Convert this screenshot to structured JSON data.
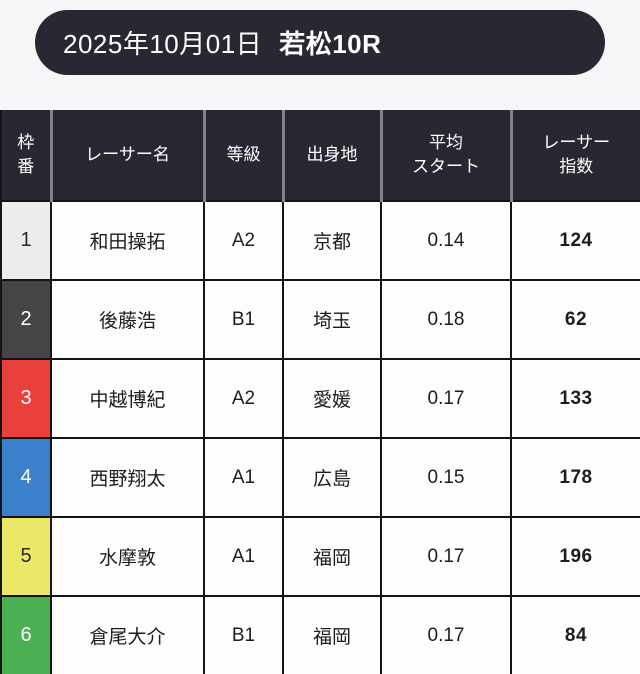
{
  "page": {
    "background_top": "#f6f6f9",
    "background_bottom": "#dedbf0"
  },
  "title_bar": {
    "date": "2025年10月01日",
    "race": "若松10R",
    "bg_color": "#2a2733",
    "text_color": "#ffffff"
  },
  "table": {
    "header_bg_color": "#2a2733",
    "header_text_color": "#ffffff",
    "columns": [
      {
        "key": "frame",
        "label": "枠\n番"
      },
      {
        "key": "name",
        "label": "レーサー名"
      },
      {
        "key": "class",
        "label": "等級"
      },
      {
        "key": "origin",
        "label": "出身地"
      },
      {
        "key": "avg_start",
        "label": "平均\nスタート"
      },
      {
        "key": "index",
        "label": "レーサー\n指数"
      }
    ],
    "rows": [
      {
        "frame": "1",
        "name": "和田操拓",
        "class": "A2",
        "origin": "京都",
        "avg_start": "0.14",
        "index": "124",
        "frame_bg": "#ececec",
        "frame_text": "#2a2a2a"
      },
      {
        "frame": "2",
        "name": "後藤浩",
        "class": "B1",
        "origin": "埼玉",
        "avg_start": "0.18",
        "index": "62",
        "frame_bg": "#454547",
        "frame_text": "#ffffff"
      },
      {
        "frame": "3",
        "name": "中越博紀",
        "class": "A2",
        "origin": "愛媛",
        "avg_start": "0.17",
        "index": "133",
        "frame_bg": "#e9403e",
        "frame_text": "#ffffff"
      },
      {
        "frame": "4",
        "name": "西野翔太",
        "class": "A1",
        "origin": "広島",
        "avg_start": "0.15",
        "index": "178",
        "frame_bg": "#3b80cb",
        "frame_text": "#ffffff"
      },
      {
        "frame": "5",
        "name": "水摩敦",
        "class": "A1",
        "origin": "福岡",
        "avg_start": "0.17",
        "index": "196",
        "frame_bg": "#ebe767",
        "frame_text": "#2a2a2a"
      },
      {
        "frame": "6",
        "name": "倉尾大介",
        "class": "B1",
        "origin": "福岡",
        "avg_start": "0.17",
        "index": "84",
        "frame_bg": "#4caf54",
        "frame_text": "#ffffff"
      }
    ]
  }
}
